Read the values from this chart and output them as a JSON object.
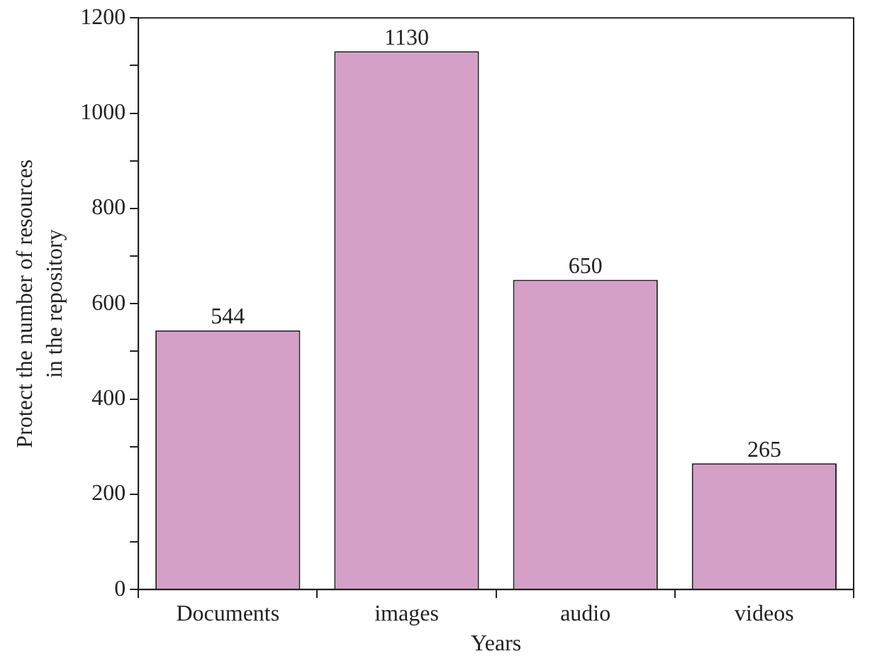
{
  "chart_data": {
    "type": "bar",
    "xlabel": "Years",
    "ylabel": "Protect the number of resources\nin the repository",
    "categories": [
      "Documents",
      "images",
      "audio",
      "videos"
    ],
    "values": [
      544,
      1130,
      650,
      265
    ],
    "color": "#d4a0c8",
    "ylim": [
      0,
      1200
    ],
    "yticks": [
      0,
      {
        "value": 100,
        "label": null
      },
      200,
      {
        "value": 300,
        "label": null
      },
      400,
      {
        "value": 500,
        "label": null
      },
      600,
      {
        "value": 700,
        "label": null
      },
      800,
      {
        "value": 900,
        "label": null
      },
      1000,
      {
        "value": 1100,
        "label": null
      },
      1200
    ],
    "data_labels": true,
    "grid": false,
    "legend": false
  }
}
